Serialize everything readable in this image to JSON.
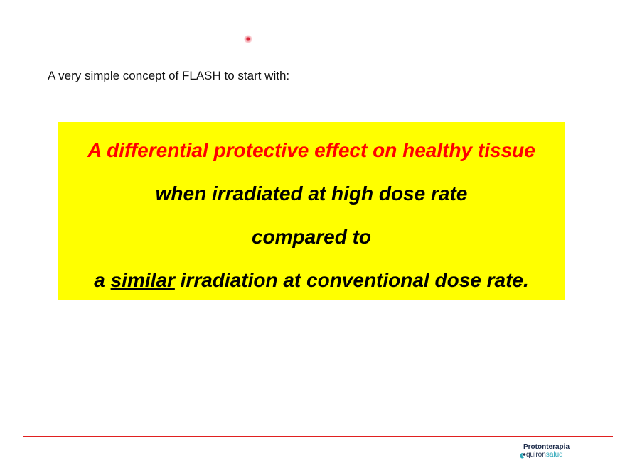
{
  "slide": {
    "intro": "A very simple concept of FLASH to start with:",
    "box": {
      "line1": "A differential protective effect on healthy tissue",
      "line2": "when irradiated at high dose rate",
      "line3": "compared to",
      "line4_prefix": "a ",
      "line4_emphasis": "similar",
      "line4_suffix": " irradiation at conventional dose rate."
    }
  },
  "footer": {
    "logo_title": "Protonterapia",
    "logo_sub_part1": "quiron",
    "logo_sub_part2": "salud"
  },
  "colors": {
    "highlight": "#ffff00",
    "headline": "#ff0000",
    "rule": "#e02020",
    "brand_dark": "#1c2b4a",
    "brand_teal": "#2aa6b8"
  },
  "icons": {
    "pointer": "laser-pointer-dot",
    "logo": "quironsalud-logo-mark"
  }
}
